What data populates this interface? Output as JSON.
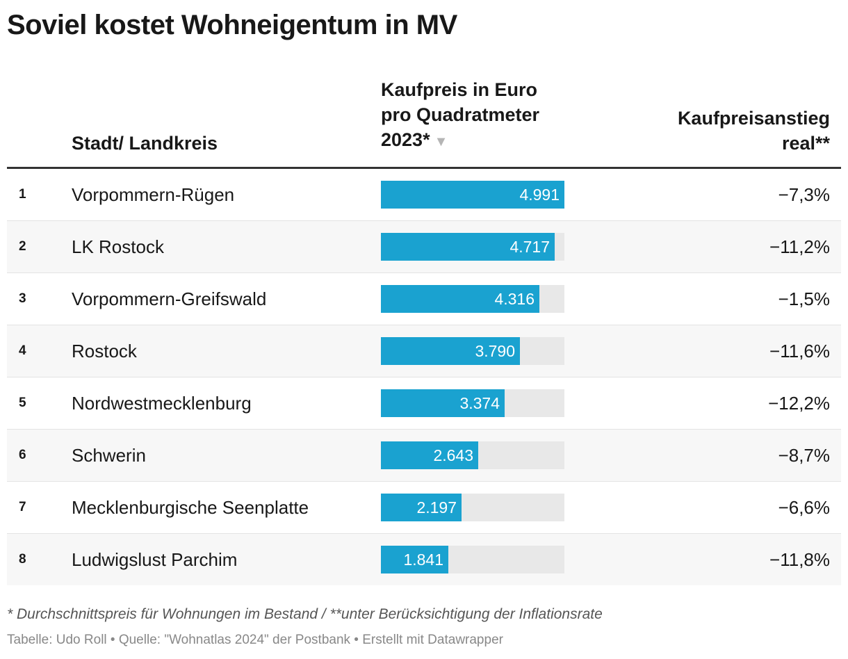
{
  "title": "Soviel kostet Wohneigentum in MV",
  "columns": {
    "name": "Stadt/ Landkreis",
    "price_line1": "Kaufpreis in Euro",
    "price_line2": "pro Quadratmeter",
    "price_line3": "2023*",
    "sort_icon": "▼",
    "change_line1": "Kaufpreisanstieg",
    "change_line2": "real**"
  },
  "chart_data": {
    "type": "table",
    "max_value": 4991,
    "rows": [
      {
        "rank": "1",
        "name": "Vorpommern-Rügen",
        "value": 4991,
        "value_label": "4.991",
        "change": "−7,3%"
      },
      {
        "rank": "2",
        "name": "LK Rostock",
        "value": 4717,
        "value_label": "4.717",
        "change": "−11,2%"
      },
      {
        "rank": "3",
        "name": "Vorpommern-Greifswald",
        "value": 4316,
        "value_label": "4.316",
        "change": "−1,5%"
      },
      {
        "rank": "4",
        "name": "Rostock",
        "value": 3790,
        "value_label": "3.790",
        "change": "−11,6%"
      },
      {
        "rank": "5",
        "name": "Nordwestmecklenburg",
        "value": 3374,
        "value_label": "3.374",
        "change": "−12,2%"
      },
      {
        "rank": "6",
        "name": "Schwerin",
        "value": 2643,
        "value_label": "2.643",
        "change": "−8,7%"
      },
      {
        "rank": "7",
        "name": "Mecklenburgische Seenplatte",
        "value": 2197,
        "value_label": "2.197",
        "change": "−6,6%"
      },
      {
        "rank": "8",
        "name": "Ludwigslust Parchim",
        "value": 1841,
        "value_label": "1.841",
        "change": "−11,8%"
      }
    ],
    "bar_color": "#1aa2d0",
    "track_color": "#e8e8e8"
  },
  "notes": "* Durchschnittspreis für Wohnungen im Bestand / **unter Berücksichtigung der Inflationsrate",
  "footer": "Tabelle: Udo Roll • Quelle: \"Wohnatlas 2024\" der Postbank  • Erstellt mit Datawrapper"
}
